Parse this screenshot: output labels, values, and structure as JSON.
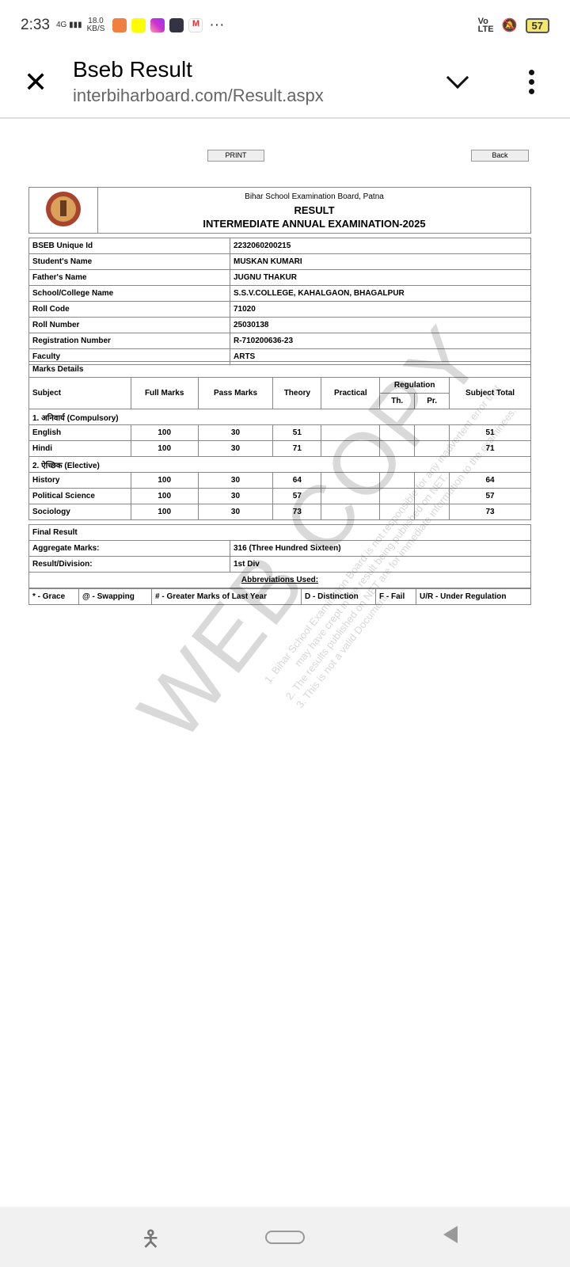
{
  "status_bar": {
    "time": "2:33",
    "network": "4G",
    "speed": "18.0",
    "speed_unit": "KB/S",
    "more": "···",
    "volte": "Vo LTE",
    "battery": "57"
  },
  "toolbar": {
    "title": "Bseb Result",
    "url": "interbiharboard.com/Result.aspx"
  },
  "page": {
    "print_label": "PRINT",
    "back_label": "Back"
  },
  "header": {
    "board": "Bihar School Examination Board, Patna",
    "result": "RESULT",
    "exam": "INTERMEDIATE ANNUAL EXAMINATION-2025"
  },
  "info": [
    {
      "label": "BSEB Unique Id",
      "value": "2232060200215"
    },
    {
      "label": "Student's Name",
      "value": "MUSKAN KUMARI"
    },
    {
      "label": "Father's Name",
      "value": "JUGNU THAKUR"
    },
    {
      "label": "School/College Name",
      "value": "S.S.V.COLLEGE, KAHALGAON, BHAGALPUR"
    },
    {
      "label": "Roll Code",
      "value": "71020"
    },
    {
      "label": "Roll Number",
      "value": "25030138"
    },
    {
      "label": "Registration Number",
      "value": "R-710200636-23"
    },
    {
      "label": "Faculty",
      "value": "ARTS"
    }
  ],
  "marks": {
    "title": "Marks Details",
    "headers": {
      "subject": "Subject",
      "full": "Full Marks",
      "pass": "Pass Marks",
      "theory": "Theory",
      "practical": "Practical",
      "regulation": "Regulation",
      "th": "Th.",
      "pr": "Pr.",
      "total": "Subject Total"
    },
    "groups": [
      {
        "name": "1. अनिवार्य (Compulsory)",
        "rows": [
          {
            "subject": "English",
            "full": "100",
            "pass": "30",
            "theory": "51",
            "practical": "",
            "th": "",
            "pr": "",
            "total": "51"
          },
          {
            "subject": "Hindi",
            "full": "100",
            "pass": "30",
            "theory": "71",
            "practical": "",
            "th": "",
            "pr": "",
            "total": "71"
          }
        ]
      },
      {
        "name": "2. ऐच्छिक (Elective)",
        "rows": [
          {
            "subject": "History",
            "full": "100",
            "pass": "30",
            "theory": "64",
            "practical": "",
            "th": "",
            "pr": "",
            "total": "64"
          },
          {
            "subject": "Political Science",
            "full": "100",
            "pass": "30",
            "theory": "57",
            "practical": "",
            "th": "",
            "pr": "",
            "total": "57"
          },
          {
            "subject": "Sociology",
            "full": "100",
            "pass": "30",
            "theory": "73",
            "practical": "",
            "th": "",
            "pr": "",
            "total": "73"
          }
        ]
      }
    ]
  },
  "final": {
    "title": "Final Result",
    "aggregate_label": "Aggregate Marks:",
    "aggregate_value": "316 (Three Hundred Sixteen)",
    "division_label": "Result/Division:",
    "division_value": "1st Div"
  },
  "abbreviations": {
    "title": "Abbreviations Used:",
    "items": [
      "* - Grace",
      "@ - Swapping",
      "# - Greater Marks of Last Year",
      "D - Distinction",
      "F - Fail",
      "U/R - Under Regulation"
    ]
  },
  "watermark": {
    "big": "WEB COPY",
    "lines": [
      "1.  Bihar School Examination Board is not responsible for any inadvertent error that",
      "may have crept in the result being published on NET.",
      "2.  The results published on NET are for immediate information to the examinees.",
      "3.  This is not a valid Document."
    ]
  }
}
